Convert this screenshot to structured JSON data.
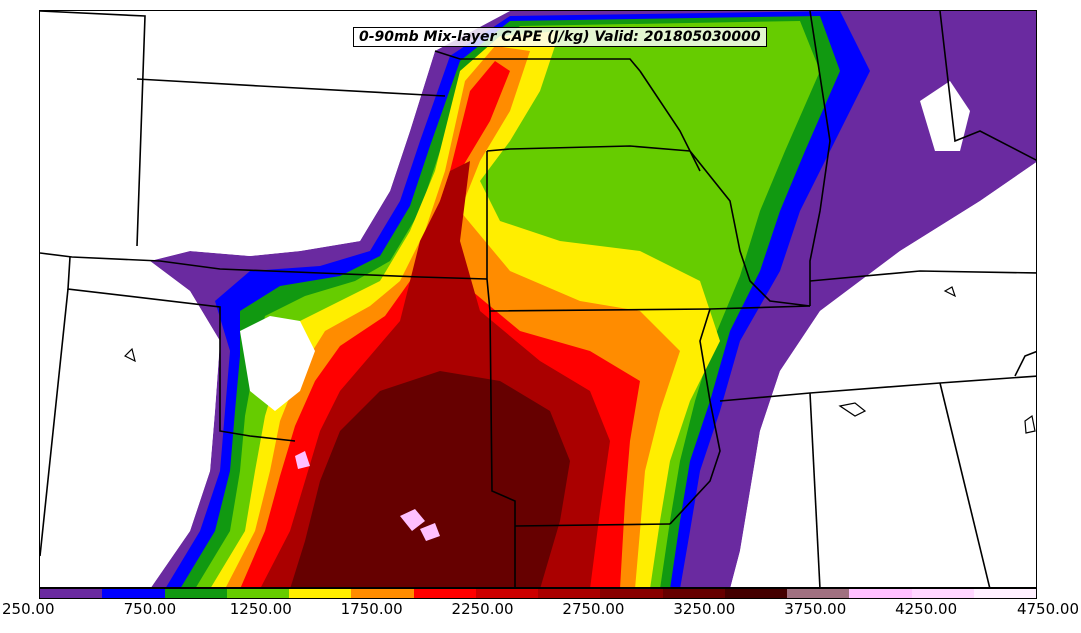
{
  "title": "0-90mb Mix-layer CAPE (J/kg) Valid: 201805030000",
  "colorbar": {
    "colors": [
      "#6a2aa0",
      "#0000ff",
      "#119911",
      "#66cc00",
      "#ffee00",
      "#ff8c00",
      "#ff0000",
      "#cc0000",
      "#aa0000",
      "#880000",
      "#660000",
      "#440000",
      "#a07080",
      "#ffc0ff",
      "#ffd6ff",
      "#fff0ff"
    ],
    "tick_labels": [
      "250.00",
      "750.00",
      "1250.00",
      "1750.00",
      "2250.00",
      "2750.00",
      "3250.00",
      "3750.00",
      "4250.00",
      "4750.00"
    ]
  },
  "map": {
    "variable": "Mix-layer CAPE",
    "units": "J/kg",
    "layer": "0-90mb",
    "valid_time": "201805030000",
    "range": [
      250,
      4750
    ],
    "interval": 250,
    "region": "central United States",
    "features": [
      "state-boundaries",
      "coastline"
    ]
  }
}
